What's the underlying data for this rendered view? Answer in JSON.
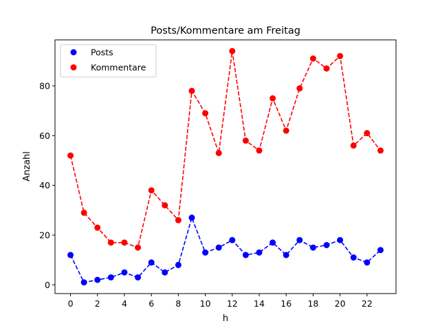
{
  "chart_data": {
    "type": "line",
    "title": "Posts/Kommentare am Freitag",
    "xlabel": "h",
    "ylabel": "Anzahl",
    "x": [
      0,
      1,
      2,
      3,
      4,
      5,
      6,
      7,
      8,
      9,
      10,
      11,
      12,
      13,
      14,
      15,
      16,
      17,
      18,
      19,
      20,
      21,
      22,
      23
    ],
    "xlim": [
      -1.15,
      24.15
    ],
    "ylim": [
      -3.5,
      98.5
    ],
    "xticks": [
      0,
      2,
      4,
      6,
      8,
      10,
      12,
      14,
      16,
      18,
      20,
      22
    ],
    "yticks": [
      0,
      20,
      40,
      60,
      80
    ],
    "grid": false,
    "legend_position": "top-left",
    "line_style": "dashed with circle markers",
    "series": [
      {
        "name": "Posts",
        "color": "#0000ff",
        "values": [
          12,
          1,
          2,
          3,
          5,
          3,
          9,
          5,
          8,
          27,
          13,
          15,
          18,
          12,
          13,
          17,
          12,
          18,
          15,
          16,
          18,
          11,
          9,
          14
        ]
      },
      {
        "name": "Kommentare",
        "color": "#ff0000",
        "values": [
          52,
          29,
          23,
          17,
          17,
          15,
          38,
          32,
          26,
          78,
          69,
          53,
          94,
          58,
          54,
          75,
          62,
          79,
          91,
          87,
          92,
          56,
          61,
          54
        ]
      }
    ]
  }
}
